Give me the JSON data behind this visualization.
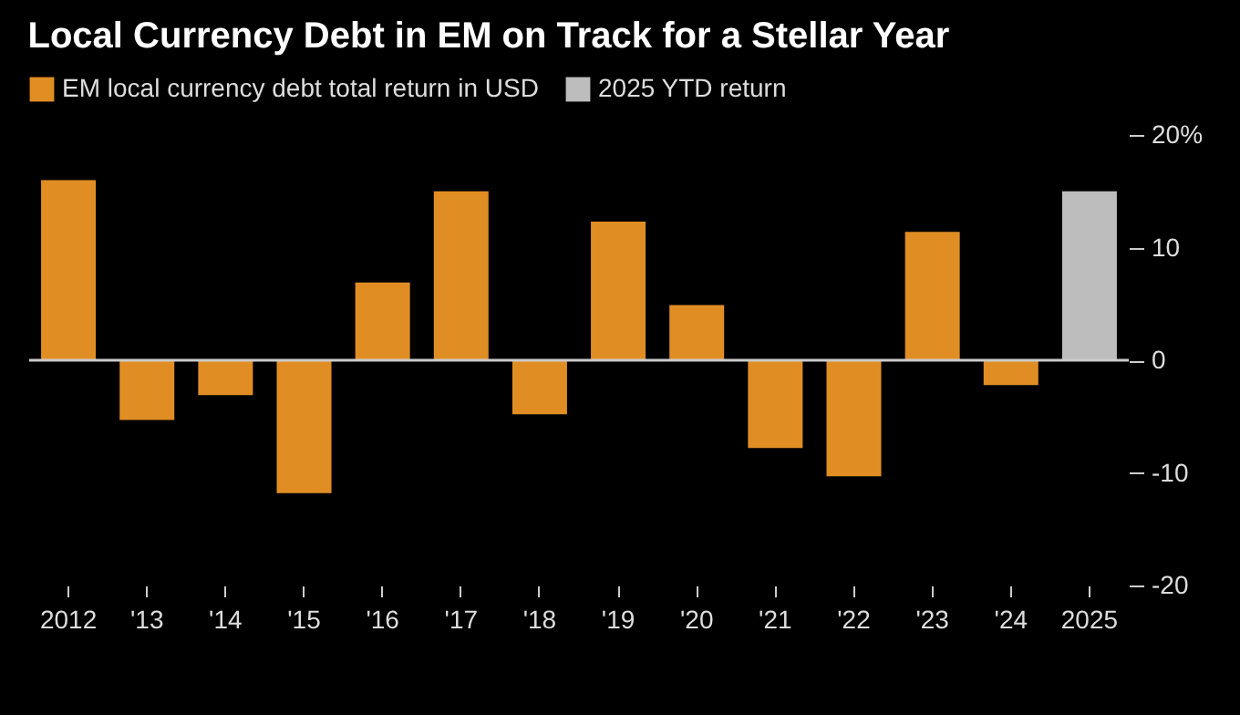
{
  "chart_data": {
    "type": "bar",
    "title": "Local Currency Debt in EM on Track for a Stellar Year",
    "categories": [
      "2012",
      "'13",
      "'14",
      "'15",
      "'16",
      "'17",
      "'18",
      "'19",
      "'20",
      "'21",
      "'22",
      "'23",
      "'24",
      "2025"
    ],
    "series": [
      {
        "name": "EM local currency debt total return in USD",
        "color": "#e08e24",
        "values": [
          16.0,
          -5.3,
          -3.1,
          -11.8,
          6.9,
          15.0,
          -4.8,
          12.3,
          4.9,
          -7.8,
          -10.3,
          11.4,
          -2.2,
          null
        ]
      },
      {
        "name": "2025 YTD return",
        "color": "#bdbdbd",
        "values": [
          null,
          null,
          null,
          null,
          null,
          null,
          null,
          null,
          null,
          null,
          null,
          null,
          null,
          15.0
        ]
      }
    ],
    "ylim": [
      -20,
      20
    ],
    "yticks": [
      {
        "value": 20,
        "label": "20%"
      },
      10,
      0,
      -10,
      -20
    ],
    "ref_lines": [
      {
        "axis": "y",
        "value": 0,
        "color": "#cccccc"
      }
    ],
    "grid": false,
    "legend": "top left"
  }
}
